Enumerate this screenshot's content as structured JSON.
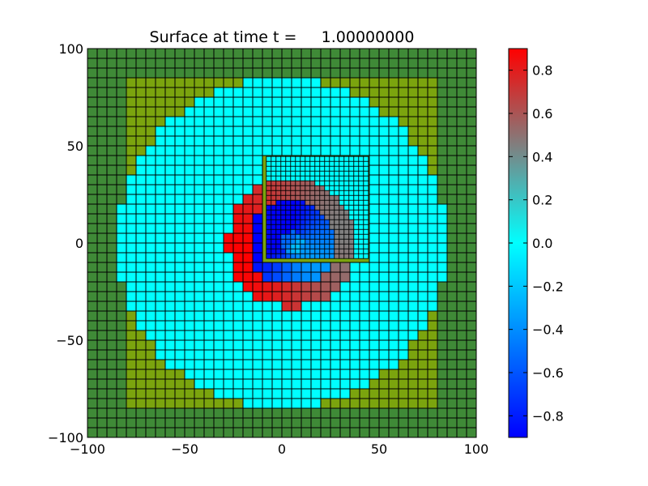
{
  "chart_data": {
    "type": "heatmap",
    "title": "Surface at time t =     1.00000000",
    "xlim": [
      -100,
      100
    ],
    "ylim": [
      -100,
      100
    ],
    "xticks": [
      -100,
      -50,
      0,
      50,
      100
    ],
    "yticks": [
      -100,
      -50,
      0,
      50,
      100
    ],
    "grid": {
      "coarse_cell_size": 5,
      "refined_cell_size": 2.5,
      "refined_region": {
        "x": [
          -8,
          44
        ],
        "y": [
          -8,
          44
        ]
      },
      "cell_edges": true
    },
    "regions": {
      "land_corner_color": "#3f8a37",
      "land_color": "#7ba40e",
      "water_level": 0.0,
      "domain_radius": 85,
      "ring": {
        "center": [
          5,
          0
        ],
        "inner_radius": 22,
        "outer_radius": 33,
        "crest_value": 0.9,
        "trough_value": -0.9
      }
    },
    "colorbar": {
      "vmin": -0.9,
      "vmax": 0.9,
      "ticks": [
        0.8,
        0.6,
        0.4,
        0.2,
        0.0,
        -0.2,
        -0.4,
        -0.6,
        -0.8
      ],
      "tick_labels": [
        "0.8",
        "0.6",
        "0.4",
        "0.2",
        "0.0",
        "−0.2",
        "−0.4",
        "−0.6",
        "−0.8"
      ],
      "colors": [
        "#0000ff",
        "#00ffff",
        "#ff0000"
      ]
    }
  }
}
